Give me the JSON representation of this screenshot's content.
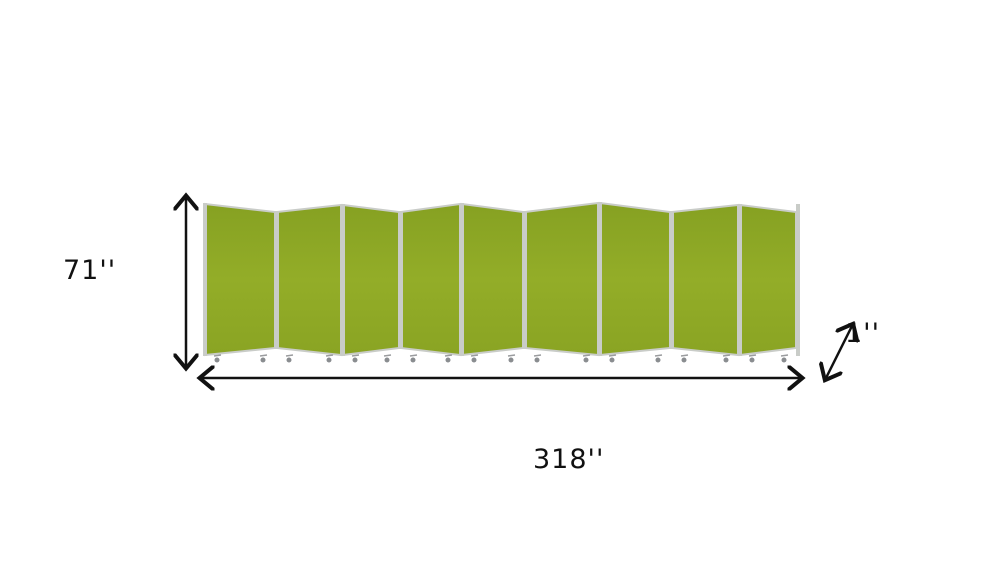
{
  "product": {
    "panel_count": 9,
    "panel_color": "#8fa825",
    "frame_color": "#c9ccc8"
  },
  "dimensions": {
    "height": "71''",
    "width": "318''",
    "depth": "1''"
  }
}
